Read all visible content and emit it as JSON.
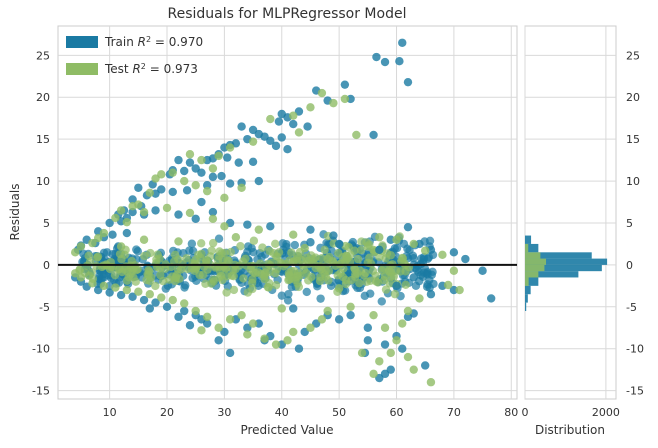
{
  "chart_data": [
    {
      "type": "scatter",
      "title": "Residuals for MLPRegressor Model",
      "xlabel": "Predicted Value",
      "ylabel": "Residuals",
      "xlim": [
        1,
        81
      ],
      "ylim": [
        -16,
        28.5
      ],
      "xticks": [
        10,
        20,
        30,
        40,
        50,
        60,
        70,
        80
      ],
      "yticks": [
        -15,
        -10,
        -5,
        0,
        5,
        10,
        15,
        20,
        25
      ],
      "grid": true,
      "legend_position": "top-left",
      "zero_line": 0,
      "series": [
        {
          "name": "Train R² = 0.970",
          "legend": {
            "prefix": "Train ",
            "r": "R",
            "sup": "2",
            "suffix": " = 0.970"
          },
          "color": "#1a7aa3",
          "points": [
            [
              61,
              26.5
            ],
            [
              56.5,
              24.8
            ],
            [
              58,
              24.2
            ],
            [
              60.5,
              24.3
            ],
            [
              62,
              21.8
            ],
            [
              51,
              21.5
            ],
            [
              52,
              19.8
            ],
            [
              46,
              20.8
            ],
            [
              48,
              19.6
            ],
            [
              43,
              18.3
            ],
            [
              40,
              18
            ],
            [
              41,
              17.6
            ],
            [
              39.5,
              17.1
            ],
            [
              42,
              16.8
            ],
            [
              44.5,
              16.5
            ],
            [
              33,
              16.5
            ],
            [
              35,
              16.1
            ],
            [
              36,
              15.6
            ],
            [
              37,
              15.3
            ],
            [
              40,
              15.2
            ],
            [
              56,
              15.5
            ],
            [
              32,
              14.5
            ],
            [
              34,
              15
            ],
            [
              38,
              14.8
            ],
            [
              30,
              14
            ],
            [
              31,
              14.3
            ],
            [
              39,
              14.2
            ],
            [
              41,
              13.8
            ],
            [
              29,
              13.2
            ],
            [
              28,
              12.7
            ],
            [
              27,
              12.5
            ],
            [
              30.5,
              12.8
            ],
            [
              32.5,
              12.2
            ],
            [
              22,
              12.5
            ],
            [
              24,
              12.2
            ],
            [
              25,
              11.5
            ],
            [
              23,
              11.2
            ],
            [
              26,
              11
            ],
            [
              28,
              10.5
            ],
            [
              29.5,
              10.6
            ],
            [
              21,
              11.3
            ],
            [
              20.5,
              10.8
            ],
            [
              17.5,
              9.6
            ],
            [
              15,
              9.2
            ],
            [
              18,
              8.5
            ],
            [
              16.5,
              8.3
            ],
            [
              19,
              9
            ],
            [
              21,
              8.7
            ],
            [
              23.5,
              8.9
            ],
            [
              27,
              9.5
            ],
            [
              31,
              9.7
            ],
            [
              33,
              9.8
            ],
            [
              36,
              10
            ],
            [
              14,
              7.8
            ],
            [
              15.5,
              7
            ],
            [
              12.5,
              6.5
            ],
            [
              14,
              6.3
            ],
            [
              16,
              6
            ],
            [
              12,
              5.2
            ],
            [
              11.5,
              6
            ],
            [
              13,
              5.6
            ],
            [
              10,
              5
            ],
            [
              18,
              6.5
            ],
            [
              22,
              6
            ],
            [
              25,
              5.5
            ],
            [
              28,
              6.3
            ],
            [
              31,
              5
            ],
            [
              34,
              4.8
            ],
            [
              38,
              4.6
            ],
            [
              45,
              4.2
            ],
            [
              49,
              3.5
            ],
            [
              8,
              4
            ],
            [
              9,
              3.3
            ],
            [
              6,
              3
            ],
            [
              7.5,
              2.6
            ],
            [
              5,
              2.3
            ],
            [
              4.5,
              1.8
            ],
            [
              62,
              4.5
            ],
            [
              59,
              3
            ],
            [
              64,
              2.5
            ],
            [
              66,
              1.8
            ],
            [
              70,
              1.5
            ],
            [
              72,
              0.7
            ],
            [
              75,
              -0.7
            ],
            [
              76.5,
              -4
            ],
            [
              70,
              -3
            ],
            [
              68,
              -2.5
            ],
            [
              54.5,
              -10.5
            ],
            [
              60,
              -8.5
            ],
            [
              61,
              -10
            ],
            [
              65,
              -12
            ],
            [
              59,
              -12.5
            ],
            [
              58,
              -13
            ],
            [
              57,
              -13.5
            ],
            [
              55,
              -9
            ],
            [
              58,
              -9.5
            ],
            [
              62,
              -6.2
            ],
            [
              63,
              -5.8
            ],
            [
              50,
              -6.5
            ],
            [
              48,
              -6
            ],
            [
              46,
              -7
            ],
            [
              44,
              -8
            ],
            [
              43,
              -10
            ],
            [
              40,
              -9.5
            ],
            [
              38,
              -8.5
            ],
            [
              37,
              -9
            ],
            [
              36,
              -7
            ],
            [
              34,
              -7.5
            ],
            [
              32,
              -6.5
            ],
            [
              30,
              -8
            ],
            [
              29,
              -9
            ],
            [
              31,
              -10.5
            ],
            [
              27,
              -7
            ],
            [
              26,
              -6.5
            ],
            [
              25,
              -6
            ],
            [
              24,
              -7.2
            ],
            [
              23,
              -5.5
            ],
            [
              20,
              -5
            ],
            [
              22,
              -6.2
            ],
            [
              18,
              -4.5
            ],
            [
              17,
              -5.2
            ],
            [
              16,
              -4.2
            ],
            [
              14,
              -3.8
            ],
            [
              12,
              -3.6
            ],
            [
              10,
              -3.3
            ],
            [
              8,
              -3
            ],
            [
              6,
              -2.6
            ],
            [
              5,
              -2
            ],
            [
              4,
              -1.5
            ],
            [
              52,
              -6
            ],
            [
              55,
              -7.5
            ],
            [
              42,
              -5.2
            ],
            [
              26,
              7.5
            ],
            [
              35,
              12.3
            ],
            [
              10.5,
              3.6
            ],
            [
              11.5,
              2.2
            ],
            [
              13,
              3.8
            ],
            [
              45,
              2.7
            ],
            [
              50,
              2.5
            ],
            [
              60,
              -2.5
            ],
            [
              66,
              -3.5
            ],
            [
              63,
              -1.5
            ],
            [
              57,
              1.8
            ]
          ]
        },
        {
          "name": "Test R² = 0.973",
          "legend": {
            "prefix": "Test ",
            "r": "R",
            "sup": "2",
            "suffix": " = 0.973"
          },
          "color": "#8fbc65",
          "points": [
            [
              47,
              20.5
            ],
            [
              49,
              19.3
            ],
            [
              51,
              19.8
            ],
            [
              45,
              18.8
            ],
            [
              42,
              17.8
            ],
            [
              38,
              17.4
            ],
            [
              43,
              15.8
            ],
            [
              53,
              15.5
            ],
            [
              35,
              14.7
            ],
            [
              31,
              14
            ],
            [
              29,
              13
            ],
            [
              24,
              13.2
            ],
            [
              26,
              12.5
            ],
            [
              28,
              11.5
            ],
            [
              21,
              11
            ],
            [
              19,
              10.8
            ],
            [
              18,
              10.3
            ],
            [
              23,
              10
            ],
            [
              25,
              9.5
            ],
            [
              27,
              8.8
            ],
            [
              30,
              8
            ],
            [
              33,
              9.2
            ],
            [
              17,
              8.6
            ],
            [
              15,
              7.2
            ],
            [
              14,
              7
            ],
            [
              16,
              6.3
            ],
            [
              12,
              6.5
            ],
            [
              11,
              5.6
            ],
            [
              13,
              5.1
            ],
            [
              20,
              6.8
            ],
            [
              24,
              6.2
            ],
            [
              28,
              5.5
            ],
            [
              30,
              4.6
            ],
            [
              36,
              4.2
            ],
            [
              42,
              3.6
            ],
            [
              9,
              3.8
            ],
            [
              8,
              3.2
            ],
            [
              7,
              2.6
            ],
            [
              5,
              2.2
            ],
            [
              4,
              1.5
            ],
            [
              57,
              3.3
            ],
            [
              60,
              3
            ],
            [
              63,
              2.5
            ],
            [
              65,
              1.7
            ],
            [
              68,
              1.2
            ],
            [
              70,
              -0.7
            ],
            [
              69,
              -2.4
            ],
            [
              71,
              -3
            ],
            [
              64,
              -4
            ],
            [
              62,
              -5.5
            ],
            [
              61,
              -7
            ],
            [
              60,
              -9
            ],
            [
              59,
              -10.5
            ],
            [
              62,
              -11
            ],
            [
              63,
              -12.5
            ],
            [
              66,
              -14
            ],
            [
              57,
              -11.5
            ],
            [
              56,
              -13
            ],
            [
              54,
              -10.5
            ],
            [
              58,
              -7.5
            ],
            [
              56,
              -6
            ],
            [
              52,
              -5
            ],
            [
              48,
              -5.5
            ],
            [
              47,
              -6.5
            ],
            [
              45,
              -7.5
            ],
            [
              42,
              -8
            ],
            [
              41,
              -9
            ],
            [
              39,
              -9.5
            ],
            [
              37,
              -8.8
            ],
            [
              35,
              -7
            ],
            [
              33,
              -6
            ],
            [
              31,
              -6.5
            ],
            [
              29,
              -7.5
            ],
            [
              27,
              -6.2
            ],
            [
              25,
              -5.5
            ],
            [
              23,
              -4.6
            ],
            [
              21,
              -4.2
            ],
            [
              19,
              -3.9
            ],
            [
              17,
              -3.5
            ],
            [
              15,
              -3.2
            ],
            [
              13,
              -3
            ],
            [
              11,
              -2.7
            ],
            [
              9,
              -2.5
            ],
            [
              7,
              -2.2
            ],
            [
              5,
              -1.5
            ],
            [
              4,
              -1
            ],
            [
              40,
              -5.2
            ],
            [
              34,
              -8.3
            ],
            [
              26,
              -7.8
            ],
            [
              12,
              2.2
            ],
            [
              16,
              3
            ],
            [
              22,
              2.8
            ],
            [
              32,
              3.3
            ],
            [
              44,
              2
            ],
            [
              50,
              -2.8
            ],
            [
              55,
              2.2
            ]
          ]
        }
      ]
    },
    {
      "type": "bar",
      "orientation": "horizontal",
      "xlabel": "Distribution",
      "xlim": [
        0,
        2250
      ],
      "xticks": [
        0,
        2000
      ],
      "ylim": [
        -16,
        28.5
      ],
      "yticks": [
        -15,
        -10,
        -5,
        0,
        5,
        10,
        15,
        20,
        25
      ],
      "grid": true,
      "series": [
        {
          "name": "Train",
          "color": "#1a7aa3",
          "bins": [
            {
              "y0": 3.5,
              "y1": 2.5,
              "count": 150
            },
            {
              "y0": 2.5,
              "y1": 1.5,
              "count": 330
            },
            {
              "y0": 1.5,
              "y1": 0.75,
              "count": 1650
            },
            {
              "y0": 0.75,
              "y1": 0,
              "count": 2030
            },
            {
              "y0": 0,
              "y1": -0.75,
              "count": 1900
            },
            {
              "y0": -0.75,
              "y1": -1.5,
              "count": 1320
            },
            {
              "y0": -1.5,
              "y1": -2.5,
              "count": 330
            },
            {
              "y0": -2.5,
              "y1": -3.5,
              "count": 140
            },
            {
              "y0": -3.5,
              "y1": -4.5,
              "count": 70
            },
            {
              "y0": -4.5,
              "y1": -5.5,
              "count": 30
            }
          ]
        },
        {
          "name": "Test",
          "color": "#8fbc65",
          "bins": [
            {
              "y0": 2.5,
              "y1": 1.5,
              "count": 80
            },
            {
              "y0": 1.5,
              "y1": 0.75,
              "count": 380
            },
            {
              "y0": 0.75,
              "y1": 0,
              "count": 520
            },
            {
              "y0": 0,
              "y1": -0.75,
              "count": 480
            },
            {
              "y0": -0.75,
              "y1": -1.5,
              "count": 330
            },
            {
              "y0": -1.5,
              "y1": -2.5,
              "count": 90
            }
          ]
        }
      ]
    }
  ]
}
